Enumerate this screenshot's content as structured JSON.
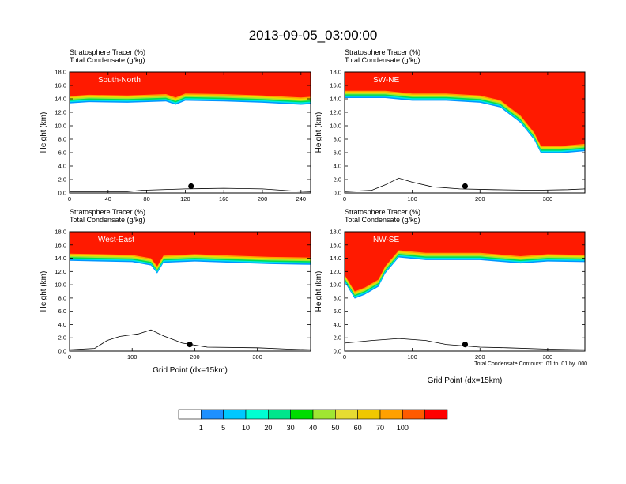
{
  "figure_title": "2013-09-05_03:00:00",
  "colorbar": {
    "labels": [
      "1",
      "5",
      "10",
      "20",
      "30",
      "40",
      "50",
      "60",
      "70",
      "100"
    ],
    "colors": [
      "#ffffff",
      "#1e90ff",
      "#00c8ff",
      "#00ffd2",
      "#00e68c",
      "#00dc00",
      "#a0e632",
      "#e6dc32",
      "#f0c800",
      "#ffa000",
      "#ff5a00",
      "#ff0000"
    ]
  },
  "contour_note": "Total Condensate Contours: .01 to .01 by .000",
  "chart_data": [
    {
      "type": "contour",
      "panel_label": "South-North",
      "title_line1": "Stratosphere Tracer   (%)",
      "title_line2": "Total Condensate   (g/kg)",
      "ylabel": "Height (km)",
      "xlabel": "",
      "xlim": [
        0,
        250
      ],
      "ylim": [
        0,
        18
      ],
      "xticks": [
        0,
        40,
        80,
        120,
        160,
        200,
        240
      ],
      "yticks": [
        "0.0",
        "2.0",
        "4.0",
        "6.0",
        "8.0",
        "10.0",
        "12.0",
        "14.0",
        "16.0",
        "18.0"
      ],
      "tropopause_km": [
        [
          0,
          14.4
        ],
        [
          20,
          14.6
        ],
        [
          60,
          14.5
        ],
        [
          100,
          14.7
        ],
        [
          110,
          14.2
        ],
        [
          120,
          14.8
        ],
        [
          160,
          14.7
        ],
        [
          200,
          14.5
        ],
        [
          240,
          14.2
        ],
        [
          250,
          14.3
        ]
      ],
      "terrain_km": [
        [
          0,
          0.2
        ],
        [
          60,
          0.2
        ],
        [
          75,
          0.4
        ],
        [
          120,
          0.6
        ],
        [
          160,
          0.7
        ],
        [
          200,
          0.6
        ],
        [
          230,
          0.3
        ],
        [
          250,
          0.2
        ]
      ],
      "marker": [
        126,
        1.0
      ]
    },
    {
      "type": "contour",
      "panel_label": "SW-NE",
      "title_line1": "Stratosphere Tracer   (%)",
      "title_line2": "Total Condensate   (g/kg)",
      "ylabel": "Height (km)",
      "xlabel": "",
      "xlim": [
        0,
        355
      ],
      "ylim": [
        0,
        18
      ],
      "xticks": [
        0,
        100,
        200,
        300
      ],
      "yticks": [
        "0.0",
        "2.0",
        "4.0",
        "6.0",
        "8.0",
        "10.0",
        "12.0",
        "14.0",
        "16.0",
        "18.0"
      ],
      "tropopause_km": [
        [
          0,
          15.2
        ],
        [
          60,
          15.2
        ],
        [
          100,
          14.8
        ],
        [
          150,
          14.8
        ],
        [
          200,
          14.5
        ],
        [
          230,
          13.8
        ],
        [
          260,
          11.5
        ],
        [
          280,
          9.0
        ],
        [
          290,
          7.0
        ],
        [
          320,
          7.0
        ],
        [
          355,
          7.3
        ]
      ],
      "terrain_km": [
        [
          0,
          0.2
        ],
        [
          40,
          0.4
        ],
        [
          60,
          1.2
        ],
        [
          80,
          2.2
        ],
        [
          100,
          1.6
        ],
        [
          130,
          0.9
        ],
        [
          170,
          0.6
        ],
        [
          220,
          0.5
        ],
        [
          280,
          0.4
        ],
        [
          330,
          0.5
        ],
        [
          355,
          0.6
        ]
      ],
      "marker": [
        178,
        1.0
      ]
    },
    {
      "type": "contour",
      "panel_label": "West-East",
      "title_line1": "Stratosphere Tracer   (%)",
      "title_line2": "Total Condensate   (g/kg)",
      "ylabel": "Height (km)",
      "xlabel": "Grid Point (dx=15km)",
      "xlim": [
        0,
        385
      ],
      "ylim": [
        0,
        18
      ],
      "xticks": [
        0,
        100,
        200,
        300
      ],
      "yticks": [
        "0.0",
        "2.0",
        "4.0",
        "6.0",
        "8.0",
        "10.0",
        "12.0",
        "14.0",
        "16.0",
        "18.0"
      ],
      "tropopause_km": [
        [
          0,
          14.7
        ],
        [
          50,
          14.6
        ],
        [
          100,
          14.5
        ],
        [
          130,
          14.0
        ],
        [
          140,
          12.8
        ],
        [
          150,
          14.4
        ],
        [
          200,
          14.6
        ],
        [
          260,
          14.4
        ],
        [
          320,
          14.2
        ],
        [
          385,
          14.1
        ]
      ],
      "terrain_km": [
        [
          0,
          0.2
        ],
        [
          40,
          0.4
        ],
        [
          60,
          1.6
        ],
        [
          80,
          2.2
        ],
        [
          110,
          2.6
        ],
        [
          130,
          3.2
        ],
        [
          150,
          2.3
        ],
        [
          180,
          1.2
        ],
        [
          220,
          0.6
        ],
        [
          300,
          0.5
        ],
        [
          350,
          0.3
        ],
        [
          385,
          0.2
        ]
      ],
      "marker": [
        192,
        1.0
      ]
    },
    {
      "type": "contour",
      "panel_label": "NW-SE",
      "title_line1": "Stratosphere Tracer   (%)",
      "title_line2": "Total Condensate   (g/kg)",
      "ylabel": "Height (km)",
      "xlabel": "Grid Point (dx=15km)",
      "xlim": [
        0,
        355
      ],
      "ylim": [
        0,
        18
      ],
      "xticks": [
        0,
        100,
        200,
        300
      ],
      "yticks": [
        "0.0",
        "2.0",
        "4.0",
        "6.0",
        "8.0",
        "10.0",
        "12.0",
        "14.0",
        "16.0",
        "18.0"
      ],
      "tropopause_km": [
        [
          0,
          11.5
        ],
        [
          15,
          9.0
        ],
        [
          30,
          9.6
        ],
        [
          50,
          10.8
        ],
        [
          60,
          12.8
        ],
        [
          80,
          15.2
        ],
        [
          120,
          14.8
        ],
        [
          200,
          14.8
        ],
        [
          260,
          14.3
        ],
        [
          300,
          14.6
        ],
        [
          355,
          14.5
        ]
      ],
      "terrain_km": [
        [
          0,
          1.2
        ],
        [
          40,
          1.6
        ],
        [
          80,
          1.9
        ],
        [
          120,
          1.6
        ],
        [
          150,
          1.0
        ],
        [
          200,
          0.6
        ],
        [
          240,
          0.5
        ],
        [
          300,
          0.3
        ],
        [
          355,
          0.2
        ]
      ],
      "marker": [
        178,
        1.0
      ]
    }
  ]
}
